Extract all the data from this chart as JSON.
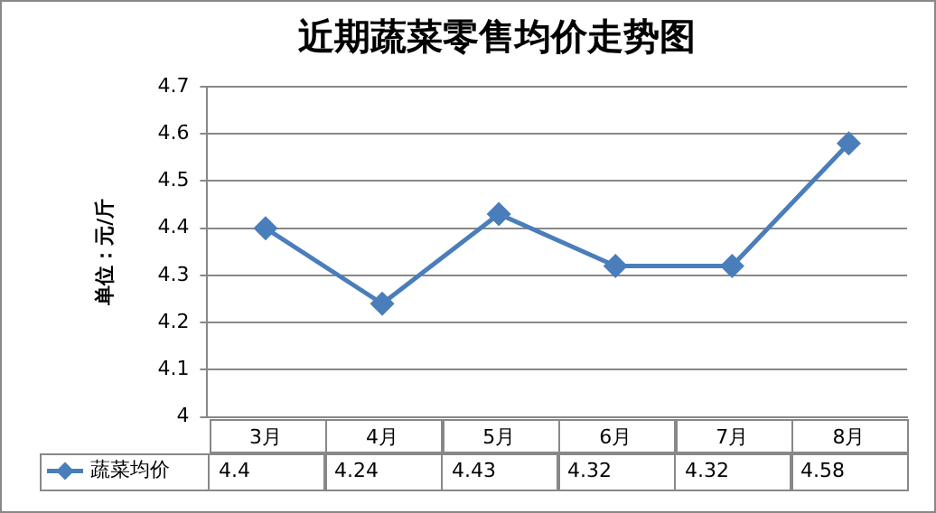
{
  "chart_data": {
    "type": "line",
    "title": "近期蔬菜零售均价走势图",
    "ylabel": "单位：元/斤",
    "categories": [
      "3月",
      "4月",
      "5月",
      "6月",
      "7月",
      "8月"
    ],
    "series": [
      {
        "name": "蔬菜均价",
        "color": "#4a7ebb",
        "values": [
          4.4,
          4.24,
          4.43,
          4.32,
          4.32,
          4.58
        ]
      }
    ],
    "ylim": [
      4,
      4.7
    ],
    "yticks": [
      4,
      4.1,
      4.2,
      4.3,
      4.4,
      4.5,
      4.6,
      4.7
    ],
    "grid": "y",
    "legend": "bottom",
    "marker": "diamond",
    "line_style": "solid",
    "data_labels": true
  }
}
